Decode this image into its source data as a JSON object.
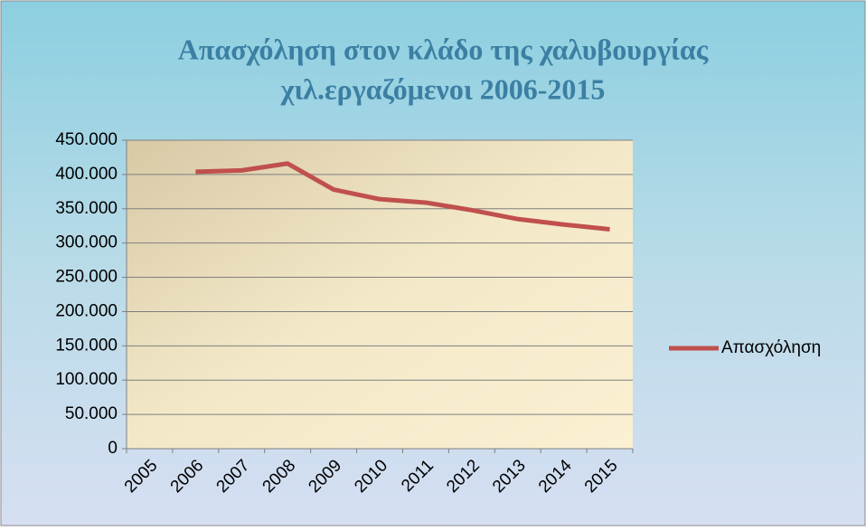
{
  "chart_data": {
    "type": "line",
    "title": "Απασχόληση στον κλάδο της χαλυβουργίας",
    "subtitle": "χιλ.εργαζόμενοι  2006-2015",
    "categories": [
      "2005",
      "2006",
      "2007",
      "2008",
      "2009",
      "2010",
      "2011",
      "2012",
      "2013",
      "2014",
      "2015"
    ],
    "series": [
      {
        "name": "Απασχόληση",
        "color": "#c0504d",
        "values": [
          null,
          404000,
          406000,
          416000,
          378000,
          364000,
          359000,
          348000,
          335000,
          327000,
          320000
        ]
      }
    ],
    "ylim": [
      0,
      450000
    ],
    "yticks": [
      {
        "value": 0,
        "label": "0"
      },
      {
        "value": 50000,
        "label": "50.000"
      },
      {
        "value": 100000,
        "label": "100.000"
      },
      {
        "value": 150000,
        "label": "150.000"
      },
      {
        "value": 200000,
        "label": "200.000"
      },
      {
        "value": 250000,
        "label": "250.000"
      },
      {
        "value": 300000,
        "label": "300.000"
      },
      {
        "value": 350000,
        "label": "350.000"
      },
      {
        "value": 400000,
        "label": "400.000"
      },
      {
        "value": 450000,
        "label": "450.000"
      }
    ],
    "grid": true,
    "legend": "right"
  }
}
